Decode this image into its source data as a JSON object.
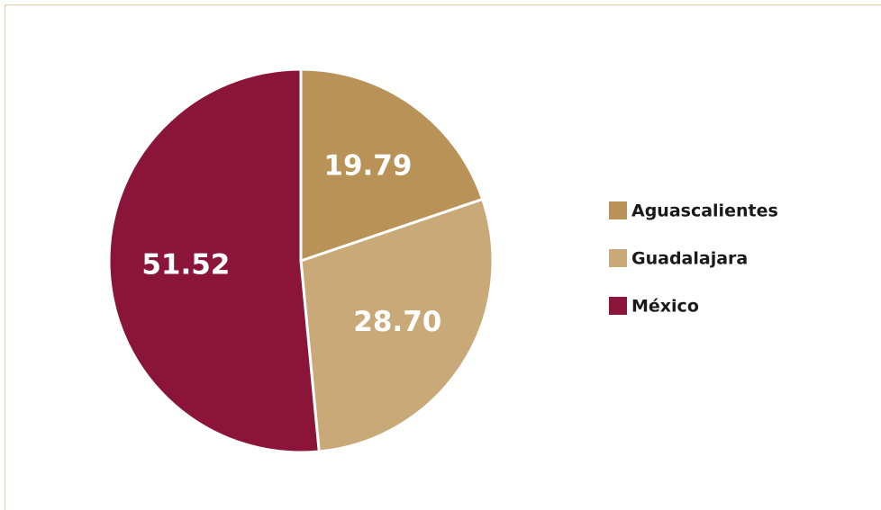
{
  "chart_data": {
    "type": "pie",
    "categories": [
      "Aguascalientes",
      "Guadalajara",
      "México"
    ],
    "values": [
      19.79,
      28.7,
      51.52
    ],
    "value_labels": [
      "19.79",
      "28.70",
      "51.52"
    ],
    "colors": [
      "#b89257",
      "#c9a978",
      "#8b1538"
    ],
    "legend": "right"
  }
}
